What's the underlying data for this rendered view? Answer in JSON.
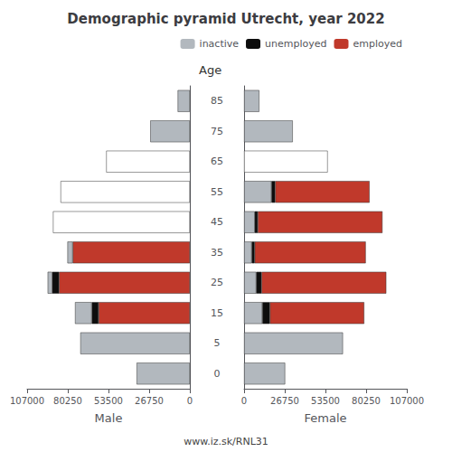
{
  "chart_data": [
    {
      "type": "bar",
      "orientation": "horizontal",
      "stacked": true,
      "title": "Demographic pyramid Utrecht, year 2022",
      "annotations": [
        "www.iz.sk/RNL31"
      ],
      "xlabel": "Male",
      "ylabel": "Age",
      "categories": [
        "85",
        "75",
        "65",
        "55",
        "45",
        "35",
        "25",
        "15",
        "5",
        "0"
      ],
      "xlim": [
        107000,
        0
      ],
      "xticks": [
        107000,
        80250,
        53500,
        26750,
        0
      ],
      "grid": false,
      "series": [
        {
          "name": "employed",
          "color": "#c0392b",
          "values": [
            0,
            0,
            0,
            0,
            0,
            77000,
            86000,
            60000,
            0,
            0
          ]
        },
        {
          "name": "unemployed",
          "color": "#0d0d0d",
          "values": [
            0,
            0,
            0,
            0,
            0,
            0,
            4500,
            4500,
            0,
            0
          ]
        },
        {
          "name": "inactive",
          "color": "#b2b8be",
          "colors": [
            "#b2b8be",
            "#b2b8be",
            "#ffffff",
            "#ffffff",
            "#ffffff",
            "#b2b8be",
            "#b2b8be",
            "#b2b8be",
            "#b2b8be",
            "#b2b8be"
          ],
          "values": [
            8000,
            26000,
            55000,
            85000,
            90000,
            3500,
            3000,
            11000,
            72000,
            35000
          ]
        }
      ]
    },
    {
      "type": "bar",
      "orientation": "horizontal",
      "stacked": true,
      "xlabel": "Female",
      "categories": [
        "85",
        "75",
        "65",
        "55",
        "45",
        "35",
        "25",
        "15",
        "5",
        "0"
      ],
      "xlim": [
        0,
        107000
      ],
      "xticks": [
        0,
        26750,
        53500,
        80250,
        107000
      ],
      "grid": false,
      "legend": "upper right",
      "series": [
        {
          "name": "inactive",
          "color": "#b2b8be",
          "colors": [
            "#b2b8be",
            "#b2b8be",
            "#ffffff",
            "#b2b8be",
            "#b2b8be",
            "#b2b8be",
            "#b2b8be",
            "#b2b8be",
            "#b2b8be",
            "#b2b8be"
          ],
          "values": [
            10000,
            32000,
            55000,
            18000,
            7000,
            5000,
            8000,
            12000,
            65000,
            27000
          ]
        },
        {
          "name": "unemployed",
          "color": "#0d0d0d",
          "values": [
            0,
            0,
            0,
            2500,
            2000,
            2000,
            3500,
            5000,
            0,
            0
          ]
        },
        {
          "name": "employed",
          "color": "#c0392b",
          "values": [
            0,
            0,
            0,
            62000,
            82000,
            73000,
            82000,
            62000,
            0,
            0
          ]
        }
      ]
    }
  ]
}
